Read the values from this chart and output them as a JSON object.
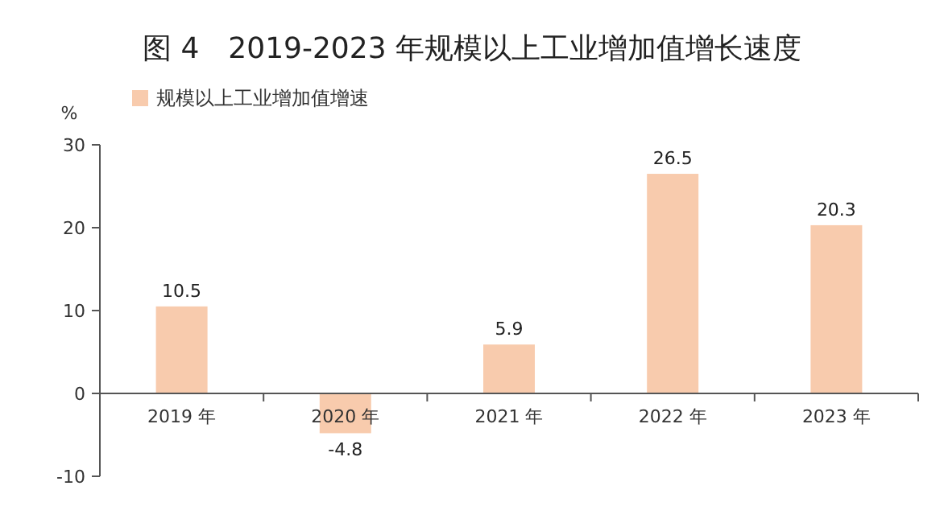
{
  "chart_data": {
    "type": "bar",
    "title": "图 4　2019-2023 年规模以上工业增加值增长速度",
    "ylabel": "%",
    "categories": [
      "2019 年",
      "2020 年",
      "2021 年",
      "2022 年",
      "2023 年"
    ],
    "series": [
      {
        "name": "规模以上工业增加值增速",
        "color": "#f8cbad",
        "values": [
          10.5,
          -4.8,
          5.9,
          26.5,
          20.3
        ]
      }
    ],
    "ylim": [
      -10,
      30
    ],
    "yticks": [
      -10,
      0,
      10,
      20,
      30
    ],
    "data_labels": true,
    "legend": "top left",
    "grid": false
  }
}
